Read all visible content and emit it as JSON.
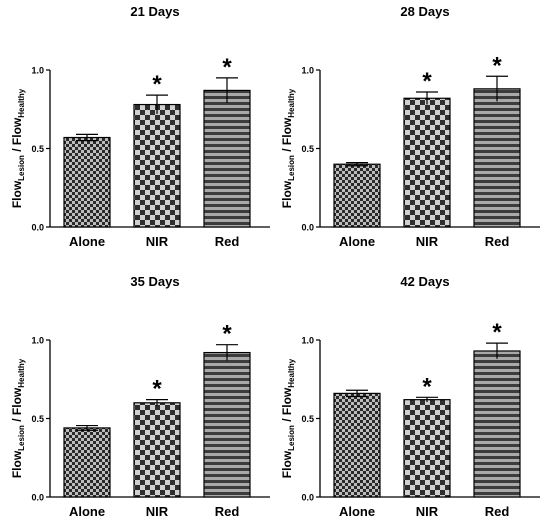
{
  "chart_data": [
    {
      "type": "bar",
      "title": "21 Days",
      "categories": [
        "Alone",
        "NIR",
        "Red"
      ],
      "values": [
        0.57,
        0.78,
        0.87
      ],
      "errors": [
        0.02,
        0.06,
        0.08
      ],
      "significance": [
        "",
        "*",
        "*"
      ],
      "ylabel_main": "Flow",
      "ylabel_sub1": "Lesion",
      "ylabel_mid": " / Flow",
      "ylabel_sub2": "Healthy",
      "yticks": [
        "0.0",
        "0.5",
        "1.0"
      ],
      "ylim": [
        0,
        1.0
      ]
    },
    {
      "type": "bar",
      "title": "28 Days",
      "categories": [
        "Alone",
        "NIR",
        "Red"
      ],
      "values": [
        0.4,
        0.82,
        0.88
      ],
      "errors": [
        0.01,
        0.04,
        0.08
      ],
      "significance": [
        "",
        "*",
        "*"
      ],
      "ylabel_main": "Flow",
      "ylabel_sub1": "Lesion",
      "ylabel_mid": " / Flow",
      "ylabel_sub2": "Healthy",
      "yticks": [
        "0.0",
        "0.5",
        "1.0"
      ],
      "ylim": [
        0,
        1.0
      ]
    },
    {
      "type": "bar",
      "title": "35 Days",
      "categories": [
        "Alone",
        "NIR",
        "Red"
      ],
      "values": [
        0.44,
        0.6,
        0.92
      ],
      "errors": [
        0.015,
        0.02,
        0.05
      ],
      "significance": [
        "",
        "*",
        "*"
      ],
      "ylabel_main": "Flow",
      "ylabel_sub1": "Lesion",
      "ylabel_mid": " / Flow",
      "ylabel_sub2": "Healthy",
      "yticks": [
        "0.0",
        "0.5",
        "1.0"
      ],
      "ylim": [
        0,
        1.0
      ]
    },
    {
      "type": "bar",
      "title": "42 Days",
      "categories": [
        "Alone",
        "NIR",
        "Red"
      ],
      "values": [
        0.66,
        0.62,
        0.93
      ],
      "errors": [
        0.02,
        0.015,
        0.05
      ],
      "significance": [
        "",
        "*",
        "*"
      ],
      "ylabel_main": "Flow",
      "ylabel_sub1": "Lesion",
      "ylabel_mid": " / Flow",
      "ylabel_sub2": "Healthy",
      "yticks": [
        "0.0",
        "0.5",
        "1.0"
      ],
      "ylim": [
        0,
        1.0
      ]
    }
  ],
  "patterns": [
    "checker-small",
    "checker-large",
    "horizontal-stripes"
  ],
  "colors": {
    "dark": "#2f2f2f",
    "mid": "#555555",
    "light": "#bcbcbc",
    "stripe_dark": "#3a3a3a",
    "stripe_light": "#a8a8a8",
    "axis": "#000000"
  }
}
